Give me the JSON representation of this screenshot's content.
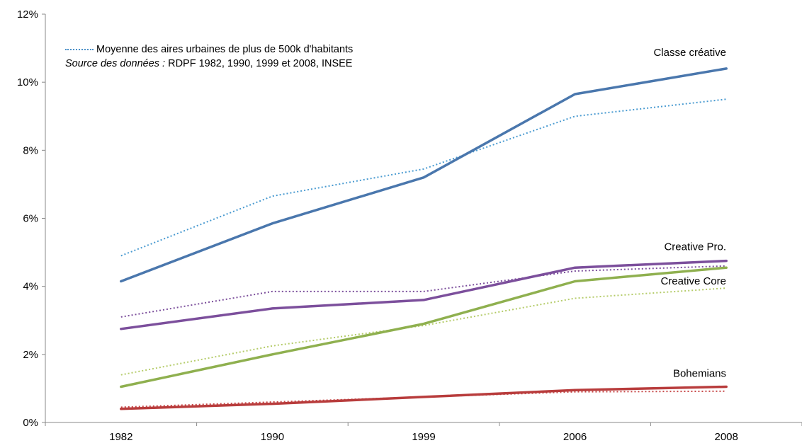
{
  "chart_data": {
    "type": "line",
    "categories": [
      "1982",
      "1990",
      "1999",
      "2006",
      "2008"
    ],
    "y_ticks": [
      "0%",
      "2%",
      "4%",
      "6%",
      "8%",
      "10%",
      "12%"
    ],
    "ylim": [
      0,
      12
    ],
    "grid": false,
    "legend": {
      "entry": "Moyenne des aires urbaines de plus de 500k d'habitants",
      "source_prefix": "Source des données :",
      "source_text": " RDPF 1982, 1990, 1999 et 2008, INSEE"
    },
    "series": [
      {
        "name": "Classe créative",
        "color": "#4a77ad",
        "values": [
          4.15,
          5.85,
          7.2,
          9.65,
          10.4
        ],
        "avg_color": "#4a9bd1",
        "avg_values": [
          4.9,
          6.65,
          7.45,
          9.0,
          9.5
        ]
      },
      {
        "name": "Creative Pro.",
        "color": "#7c4f9c",
        "values": [
          2.75,
          3.35,
          3.6,
          4.55,
          4.75
        ],
        "avg_color": "#7c4f9c",
        "avg_values": [
          3.1,
          3.85,
          3.85,
          4.45,
          4.6
        ]
      },
      {
        "name": "Creative Core",
        "color": "#8fb04f",
        "values": [
          1.05,
          2.0,
          2.9,
          4.15,
          4.55
        ],
        "avg_color": "#b5cc6a",
        "avg_values": [
          1.4,
          2.25,
          2.85,
          3.65,
          3.95
        ]
      },
      {
        "name": "Bohemians",
        "color": "#b83c3c",
        "values": [
          0.4,
          0.55,
          0.75,
          0.95,
          1.05
        ],
        "avg_color": "#c84a4a",
        "avg_values": [
          0.45,
          0.6,
          0.75,
          0.9,
          0.92
        ]
      }
    ]
  }
}
